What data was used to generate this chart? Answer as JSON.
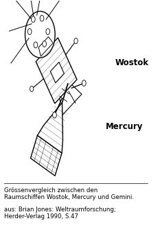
{
  "background_color": "#ffffff",
  "label_wostok": "Wostok",
  "label_mercury": "Mercury",
  "caption_line1": "Grössenvergleich zwischen den",
  "caption_line2": "Raumschiffen Wostok, Mercury und Gemini.",
  "source_line1": "aus: Brian Jones: Weltraumforschung;",
  "source_line2": "Herder-Verlag 1990, S.47",
  "figsize": [
    2.33,
    3.41
  ],
  "dpi": 100
}
